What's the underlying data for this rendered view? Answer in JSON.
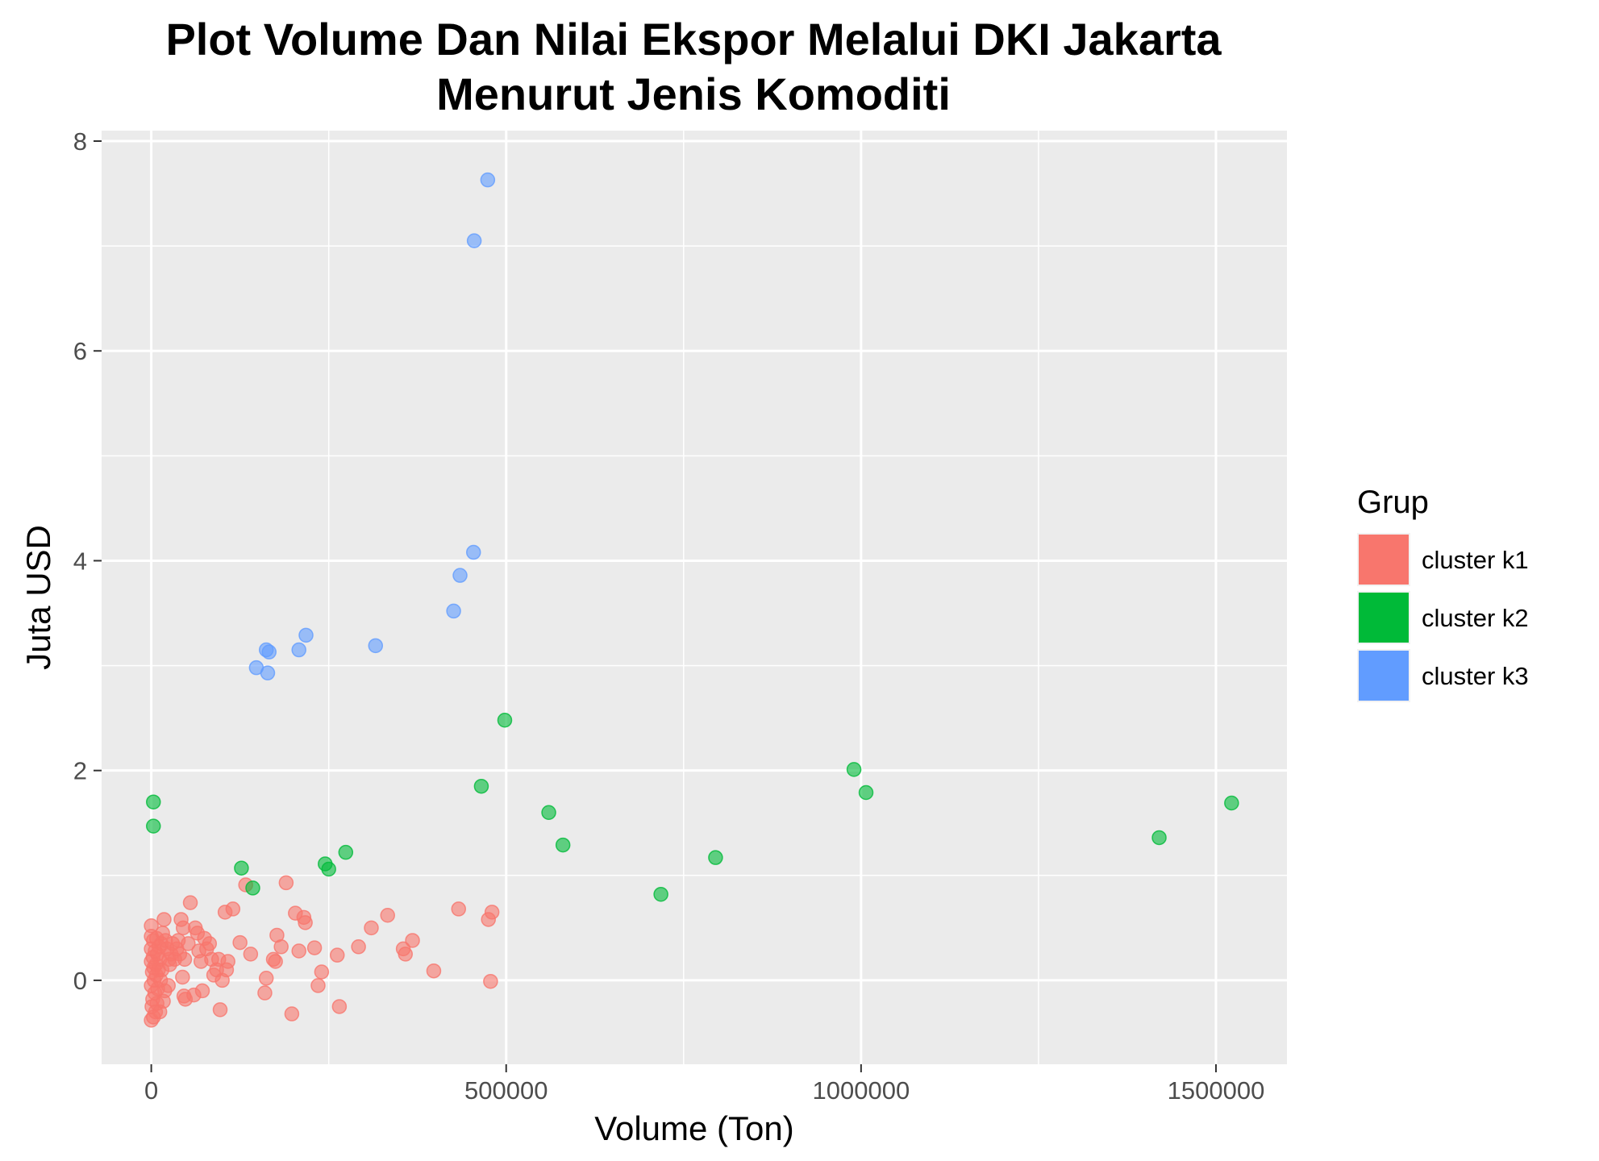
{
  "chart_data": {
    "type": "scatter",
    "title": "Plot Volume Dan Nilai Ekspor Melalui DKI Jakarta Menurut Jenis Komoditi",
    "title_lines": [
      "Plot Volume Dan Nilai Ekspor Melalui DKI Jakarta",
      "Menurut Jenis Komoditi"
    ],
    "xlabel": "Volume (Ton)",
    "ylabel": "Juta USD",
    "xlim": [
      -70000,
      1600000
    ],
    "ylim": [
      -0.8,
      8.1
    ],
    "x_ticks": [
      0,
      500000,
      1000000,
      1500000
    ],
    "x_tick_labels": [
      "0",
      "500000",
      "1000000",
      "1500000"
    ],
    "y_ticks": [
      0,
      2,
      4,
      6,
      8
    ],
    "y_tick_labels": [
      "0",
      "2",
      "4",
      "6",
      "8"
    ],
    "grid": true,
    "legend": {
      "title": "Grup",
      "position": "right"
    },
    "series": [
      {
        "name": "cluster k1",
        "color": "#F8766D",
        "points": [
          [
            0,
            -0.38
          ],
          [
            3000,
            -0.35
          ],
          [
            6000,
            -0.3
          ],
          [
            1000,
            -0.25
          ],
          [
            8000,
            -0.22
          ],
          [
            2000,
            -0.18
          ],
          [
            5000,
            -0.12
          ],
          [
            9000,
            -0.08
          ],
          [
            0,
            -0.05
          ],
          [
            4000,
            0.0
          ],
          [
            7000,
            0.05
          ],
          [
            1500,
            0.08
          ],
          [
            10000,
            0.1
          ],
          [
            3500,
            0.12
          ],
          [
            6500,
            0.15
          ],
          [
            0,
            0.18
          ],
          [
            12000,
            0.2
          ],
          [
            2500,
            0.22
          ],
          [
            8500,
            0.25
          ],
          [
            5500,
            0.28
          ],
          [
            0,
            0.3
          ],
          [
            11000,
            0.32
          ],
          [
            14000,
            0.35
          ],
          [
            3000,
            0.38
          ],
          [
            7500,
            0.4
          ],
          [
            0,
            0.42
          ],
          [
            16000,
            0.45
          ],
          [
            0,
            0.52
          ],
          [
            18000,
            0.58
          ],
          [
            20000,
            0.38
          ],
          [
            22000,
            0.3
          ],
          [
            25000,
            0.2
          ],
          [
            15000,
            0.1
          ],
          [
            13000,
            0.0
          ],
          [
            19000,
            -0.1
          ],
          [
            17000,
            -0.2
          ],
          [
            12000,
            -0.3
          ],
          [
            24000,
            -0.05
          ],
          [
            26000,
            0.15
          ],
          [
            28000,
            0.25
          ],
          [
            30000,
            0.35
          ],
          [
            33000,
            0.2
          ],
          [
            36000,
            0.3
          ],
          [
            38000,
            0.38
          ],
          [
            40000,
            0.25
          ],
          [
            42000,
            0.58
          ],
          [
            45000,
            0.5
          ],
          [
            47000,
            0.2
          ],
          [
            44000,
            0.03
          ],
          [
            46000,
            -0.15
          ],
          [
            48000,
            -0.18
          ],
          [
            52000,
            0.35
          ],
          [
            55000,
            0.74
          ],
          [
            60000,
            -0.14
          ],
          [
            62000,
            0.5
          ],
          [
            65000,
            0.45
          ],
          [
            67000,
            0.28
          ],
          [
            70000,
            0.18
          ],
          [
            72000,
            -0.1
          ],
          [
            75000,
            0.4
          ],
          [
            78000,
            0.3
          ],
          [
            82000,
            0.35
          ],
          [
            85000,
            0.2
          ],
          [
            88000,
            0.05
          ],
          [
            92000,
            0.1
          ],
          [
            95000,
            0.2
          ],
          [
            97000,
            -0.28
          ],
          [
            100000,
            0.0
          ],
          [
            104000,
            0.65
          ],
          [
            106000,
            0.1
          ],
          [
            108000,
            0.18
          ],
          [
            115000,
            0.68
          ],
          [
            125000,
            0.36
          ],
          [
            133000,
            0.91
          ],
          [
            140000,
            0.25
          ],
          [
            160000,
            -0.12
          ],
          [
            162000,
            0.02
          ],
          [
            172000,
            0.2
          ],
          [
            175000,
            0.18
          ],
          [
            177000,
            0.43
          ],
          [
            183000,
            0.32
          ],
          [
            190000,
            0.93
          ],
          [
            198000,
            -0.32
          ],
          [
            203000,
            0.64
          ],
          [
            208000,
            0.28
          ],
          [
            215000,
            0.6
          ],
          [
            217000,
            0.55
          ],
          [
            230000,
            0.31
          ],
          [
            235000,
            -0.05
          ],
          [
            240000,
            0.08
          ],
          [
            262000,
            0.24
          ],
          [
            265000,
            -0.25
          ],
          [
            292000,
            0.32
          ],
          [
            310000,
            0.5
          ],
          [
            333000,
            0.62
          ],
          [
            355000,
            0.3
          ],
          [
            358000,
            0.25
          ],
          [
            368000,
            0.38
          ],
          [
            398000,
            0.09
          ],
          [
            433000,
            0.68
          ],
          [
            475000,
            0.58
          ],
          [
            480000,
            0.65
          ],
          [
            478000,
            -0.01
          ]
        ]
      },
      {
        "name": "cluster k2",
        "color": "#00BA38",
        "points": [
          [
            3000,
            1.7
          ],
          [
            3000,
            1.47
          ],
          [
            127000,
            1.07
          ],
          [
            143000,
            0.88
          ],
          [
            245000,
            1.11
          ],
          [
            250000,
            1.06
          ],
          [
            274000,
            1.22
          ],
          [
            465000,
            1.85
          ],
          [
            498000,
            2.48
          ],
          [
            560000,
            1.6
          ],
          [
            580000,
            1.29
          ],
          [
            718000,
            0.82
          ],
          [
            795000,
            1.17
          ],
          [
            990000,
            2.01
          ],
          [
            1007000,
            1.79
          ],
          [
            1420000,
            1.36
          ],
          [
            1522000,
            1.69
          ]
        ]
      },
      {
        "name": "cluster k3",
        "color": "#619CFF",
        "points": [
          [
            148000,
            2.98
          ],
          [
            162000,
            3.15
          ],
          [
            164000,
            2.93
          ],
          [
            166000,
            3.13
          ],
          [
            208000,
            3.15
          ],
          [
            218000,
            3.29
          ],
          [
            316000,
            3.19
          ],
          [
            426000,
            3.52
          ],
          [
            435000,
            3.86
          ],
          [
            454000,
            4.08
          ],
          [
            455000,
            7.05
          ],
          [
            474000,
            7.63
          ]
        ]
      }
    ]
  }
}
